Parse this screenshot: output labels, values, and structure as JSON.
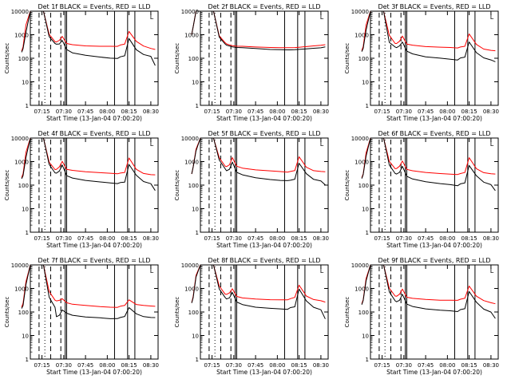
{
  "colors": {
    "background": "#ffffff",
    "axes": "#000000",
    "events": "#000000",
    "lld": "#ff0000"
  },
  "common": {
    "ylabel": "Counts/sec",
    "xlabel": "Start Time (13-Jan-04 07:00:20)",
    "yticks": [
      "1",
      "10",
      "100",
      "1000",
      "10000"
    ],
    "xticks": [
      "07:15",
      "07:30",
      "07:45",
      "08:00",
      "08:15",
      "08:30"
    ],
    "corner_glyph": "L"
  },
  "chart_data": [
    {
      "type": "line",
      "title": "Det 1f BLACK = Events, RED = LLD",
      "xlabel": "Start Time (13-Jan-04 07:00:20)",
      "ylabel": "Counts/sec",
      "y_scale": "log",
      "ylim": [
        1,
        10000
      ],
      "x": [
        "07:01",
        "07:02",
        "07:04",
        "07:07",
        "07:11",
        "07:16",
        "07:20",
        "07:24",
        "07:25",
        "07:27",
        "07:29",
        "07:32",
        "07:36",
        "07:45",
        "07:55",
        "08:02",
        "08:07",
        "08:09",
        "08:12",
        "08:15",
        "08:20",
        "08:25",
        "08:30",
        "08:33"
      ],
      "series": [
        {
          "name": "Events",
          "values": [
            180,
            250,
            1200,
            10000,
            10000,
            10000,
            800,
            420,
            400,
            420,
            600,
            250,
            180,
            140,
            115,
            100,
            95,
            110,
            120,
            650,
            220,
            140,
            120,
            50
          ]
        },
        {
          "name": "LLD",
          "values": [
            200,
            300,
            2500,
            10000,
            10000,
            10000,
            1000,
            500,
            500,
            600,
            900,
            450,
            400,
            350,
            330,
            320,
            310,
            350,
            380,
            1300,
            500,
            320,
            260,
            240
          ]
        }
      ]
    },
    {
      "type": "line",
      "title": "Det 2f BLACK = Events, RED = LLD",
      "xlabel": "Start Time (13-Jan-04 07:00:20)",
      "ylabel": "Counts/sec",
      "y_scale": "log",
      "ylim": [
        1,
        10000
      ],
      "x": [
        "07:01",
        "07:02",
        "07:04",
        "07:07",
        "07:11",
        "07:16",
        "07:20",
        "07:24",
        "07:25",
        "07:27",
        "07:29",
        "07:32",
        "07:36",
        "07:45",
        "07:55",
        "08:02",
        "08:07",
        "08:09",
        "08:12",
        "08:15",
        "08:20",
        "08:25",
        "08:30",
        "08:33"
      ],
      "series": [
        {
          "name": "Events",
          "values": [
            1000,
            2000,
            10000,
            10000,
            10000,
            10000,
            800,
            420,
            380,
            350,
            320,
            300,
            290,
            260,
            230,
            220,
            215,
            215,
            220,
            230,
            250,
            270,
            290,
            320
          ]
        },
        {
          "name": "LLD",
          "values": [
            1000,
            2000,
            10000,
            10000,
            10000,
            10000,
            900,
            480,
            430,
            390,
            360,
            340,
            330,
            300,
            280,
            270,
            265,
            265,
            270,
            285,
            310,
            340,
            370,
            400
          ]
        }
      ]
    },
    {
      "type": "line",
      "title": "Det 3f BLACK = Events, RED = LLD",
      "xlabel": "Start Time (13-Jan-04 07:00:20)",
      "ylabel": "Counts/sec",
      "y_scale": "log",
      "ylim": [
        1,
        10000
      ],
      "x": [
        "07:01",
        "07:02",
        "07:04",
        "07:07",
        "07:11",
        "07:16",
        "07:20",
        "07:24",
        "07:25",
        "07:27",
        "07:29",
        "07:32",
        "07:36",
        "07:45",
        "07:55",
        "08:02",
        "08:07",
        "08:09",
        "08:12",
        "08:15",
        "08:20",
        "08:25",
        "08:30",
        "08:33"
      ],
      "series": [
        {
          "name": "Events",
          "values": [
            180,
            250,
            1500,
            10000,
            10000,
            10000,
            500,
            320,
            300,
            350,
            500,
            200,
            150,
            110,
            95,
            85,
            80,
            100,
            110,
            500,
            180,
            110,
            90,
            75
          ]
        },
        {
          "name": "LLD",
          "values": [
            200,
            300,
            2500,
            10000,
            10000,
            10000,
            1000,
            450,
            450,
            550,
            900,
            400,
            350,
            300,
            280,
            270,
            260,
            290,
            320,
            1100,
            400,
            260,
            230,
            220
          ]
        }
      ]
    },
    {
      "type": "line",
      "title": "Det 4f BLACK = Events, RED = LLD",
      "xlabel": "Start Time (13-Jan-04 07:00:20)",
      "ylabel": "Counts/sec",
      "y_scale": "log",
      "ylim": [
        1,
        10000
      ],
      "x": [
        "07:01",
        "07:02",
        "07:04",
        "07:07",
        "07:11",
        "07:16",
        "07:20",
        "07:24",
        "07:25",
        "07:27",
        "07:29",
        "07:32",
        "07:36",
        "07:45",
        "07:55",
        "08:02",
        "08:07",
        "08:09",
        "08:12",
        "08:15",
        "08:20",
        "08:25",
        "08:30",
        "08:33"
      ],
      "series": [
        {
          "name": "Events",
          "values": [
            180,
            250,
            1500,
            10000,
            10000,
            10000,
            800,
            350,
            330,
            400,
            700,
            240,
            190,
            150,
            130,
            120,
            115,
            130,
            140,
            800,
            280,
            150,
            120,
            60
          ]
        },
        {
          "name": "LLD",
          "values": [
            200,
            300,
            2500,
            10000,
            10000,
            10000,
            1000,
            480,
            480,
            600,
            1000,
            450,
            400,
            350,
            320,
            310,
            300,
            330,
            360,
            1500,
            500,
            330,
            290,
            280
          ]
        }
      ]
    },
    {
      "type": "line",
      "title": "Det 5f BLACK = Events, RED = LLD",
      "xlabel": "Start Time (13-Jan-04 07:00:20)",
      "ylabel": "Counts/sec",
      "y_scale": "log",
      "ylim": [
        1,
        10000
      ],
      "x": [
        "07:01",
        "07:02",
        "07:04",
        "07:07",
        "07:11",
        "07:16",
        "07:20",
        "07:24",
        "07:25",
        "07:27",
        "07:29",
        "07:32",
        "07:36",
        "07:45",
        "07:55",
        "08:02",
        "08:07",
        "08:09",
        "08:12",
        "08:15",
        "08:20",
        "08:25",
        "08:30",
        "08:33"
      ],
      "series": [
        {
          "name": "Events",
          "values": [
            300,
            600,
            3000,
            10000,
            10000,
            10000,
            1200,
            500,
            400,
            450,
            900,
            330,
            260,
            200,
            170,
            160,
            160,
            170,
            190,
            900,
            320,
            180,
            150,
            100
          ]
        },
        {
          "name": "LLD",
          "values": [
            300,
            600,
            3500,
            10000,
            10000,
            10000,
            1500,
            650,
            600,
            700,
            1400,
            600,
            500,
            430,
            400,
            380,
            370,
            400,
            440,
            1700,
            600,
            420,
            380,
            360
          ]
        }
      ]
    },
    {
      "type": "line",
      "title": "Det 6f BLACK = Events, RED = LLD",
      "xlabel": "Start Time (13-Jan-04 07:00:20)",
      "ylabel": "Counts/sec",
      "y_scale": "log",
      "ylim": [
        1,
        10000
      ],
      "x": [
        "07:01",
        "07:02",
        "07:04",
        "07:07",
        "07:11",
        "07:16",
        "07:20",
        "07:24",
        "07:25",
        "07:27",
        "07:29",
        "07:32",
        "07:36",
        "07:45",
        "07:55",
        "08:02",
        "08:07",
        "08:09",
        "08:12",
        "08:15",
        "08:20",
        "08:25",
        "08:30",
        "08:33"
      ],
      "series": [
        {
          "name": "Events",
          "values": [
            200,
            300,
            1800,
            10000,
            10000,
            10000,
            700,
            300,
            280,
            330,
            600,
            230,
            180,
            140,
            120,
            110,
            100,
            120,
            130,
            700,
            250,
            130,
            100,
            55
          ]
        },
        {
          "name": "LLD",
          "values": [
            220,
            320,
            2500,
            10000,
            10000,
            10000,
            1000,
            480,
            480,
            600,
            1000,
            450,
            400,
            350,
            320,
            310,
            300,
            330,
            360,
            1500,
            500,
            330,
            290,
            280
          ]
        }
      ]
    },
    {
      "type": "line",
      "title": "Det 7f BLACK = Events, RED = LLD",
      "xlabel": "Start Time (13-Jan-04 07:00:20)",
      "ylabel": "Counts/sec",
      "y_scale": "log",
      "ylim": [
        1,
        10000
      ],
      "x": [
        "07:01",
        "07:02",
        "07:04",
        "07:07",
        "07:11",
        "07:16",
        "07:20",
        "07:24",
        "07:25",
        "07:27",
        "07:29",
        "07:32",
        "07:36",
        "07:45",
        "07:55",
        "08:02",
        "08:07",
        "08:09",
        "08:12",
        "08:15",
        "08:20",
        "08:25",
        "08:30",
        "08:33"
      ],
      "series": [
        {
          "name": "Events",
          "values": [
            150,
            200,
            1500,
            10000,
            10000,
            10000,
            400,
            150,
            60,
            70,
            120,
            90,
            75,
            65,
            60,
            55,
            55,
            60,
            65,
            150,
            80,
            60,
            55,
            55
          ]
        },
        {
          "name": "LLD",
          "values": [
            170,
            250,
            2000,
            10000,
            10000,
            10000,
            700,
            300,
            280,
            300,
            360,
            250,
            220,
            200,
            180,
            170,
            165,
            180,
            190,
            320,
            200,
            180,
            170,
            165
          ]
        }
      ]
    },
    {
      "type": "line",
      "title": "Det 8f BLACK = Events, RED = LLD",
      "xlabel": "Start Time (13-Jan-04 07:00:20)",
      "ylabel": "Counts/sec",
      "y_scale": "log",
      "ylim": [
        1,
        10000
      ],
      "x": [
        "07:01",
        "07:02",
        "07:04",
        "07:07",
        "07:11",
        "07:16",
        "07:20",
        "07:24",
        "07:25",
        "07:27",
        "07:29",
        "07:32",
        "07:36",
        "07:45",
        "07:55",
        "08:02",
        "08:07",
        "08:09",
        "08:12",
        "08:15",
        "08:20",
        "08:25",
        "08:30",
        "08:33"
      ],
      "series": [
        {
          "name": "Events",
          "values": [
            250,
            400,
            3000,
            10000,
            10000,
            10000,
            900,
            400,
            350,
            400,
            700,
            280,
            220,
            170,
            150,
            140,
            130,
            150,
            160,
            900,
            280,
            150,
            120,
            50
          ]
        },
        {
          "name": "LLD",
          "values": [
            260,
            450,
            3500,
            10000,
            10000,
            10000,
            1200,
            550,
            550,
            650,
            1000,
            480,
            420,
            380,
            350,
            340,
            330,
            360,
            400,
            1300,
            450,
            320,
            290,
            260
          ]
        }
      ]
    },
    {
      "type": "line",
      "title": "Det 9f BLACK = Events, RED = LLD",
      "xlabel": "Start Time (13-Jan-04 07:00:20)",
      "ylabel": "Counts/sec",
      "y_scale": "log",
      "ylim": [
        1,
        10000
      ],
      "x": [
        "07:01",
        "07:02",
        "07:04",
        "07:07",
        "07:11",
        "07:16",
        "07:20",
        "07:24",
        "07:25",
        "07:27",
        "07:29",
        "07:32",
        "07:36",
        "07:45",
        "07:55",
        "08:02",
        "08:07",
        "08:09",
        "08:12",
        "08:15",
        "08:20",
        "08:25",
        "08:30",
        "08:33"
      ],
      "series": [
        {
          "name": "Events",
          "values": [
            200,
            300,
            2000,
            10000,
            10000,
            10000,
            700,
            300,
            280,
            330,
            600,
            230,
            180,
            140,
            120,
            110,
            100,
            120,
            130,
            700,
            250,
            130,
            100,
            55
          ]
        },
        {
          "name": "LLD",
          "values": [
            220,
            320,
            2500,
            10000,
            10000,
            10000,
            1000,
            480,
            480,
            600,
            1000,
            450,
            400,
            350,
            320,
            310,
            300,
            330,
            360,
            1200,
            450,
            300,
            250,
            230
          ]
        }
      ]
    }
  ]
}
